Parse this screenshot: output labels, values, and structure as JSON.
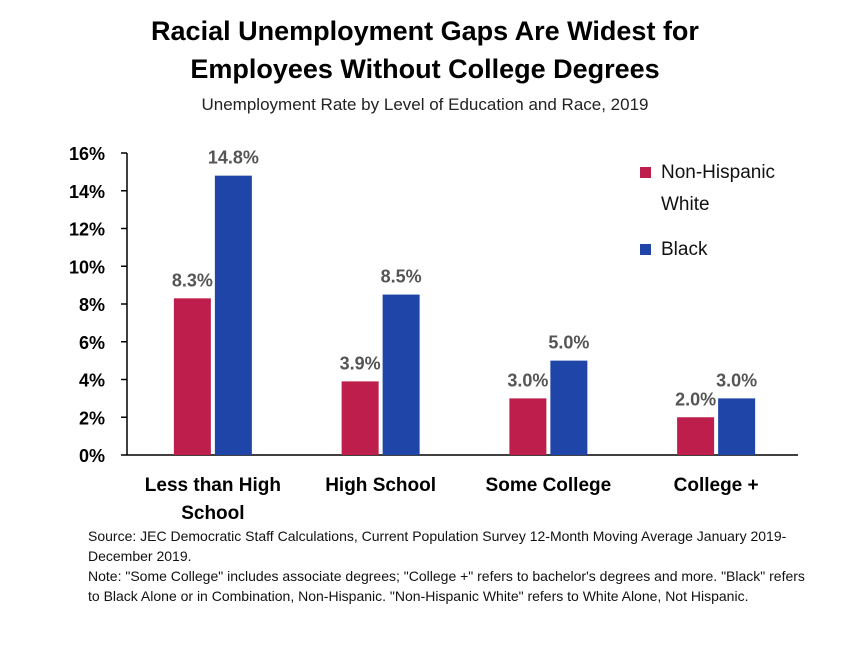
{
  "title_line1": "Racial Unemployment Gaps Are Widest for",
  "title_line2": "Employees Without College Degrees",
  "subtitle": "Unemployment Rate by Level of Education and Race, 2019",
  "source": "Source: JEC Democratic Staff Calculations, Current Population Survey 12-Month Moving Average January 2019-December 2019.",
  "note": "Note: \"Some College\" includes associate degrees; \"College +\" refers to bachelor's degrees and more. \"Black\" refers to Black Alone or in Combination, Non-Hispanic. \"Non-Hispanic White\" refers to White Alone, Not Hispanic.",
  "chart_data": {
    "type": "bar",
    "categories": [
      "Less than High School",
      "High School",
      "Some College",
      "College +"
    ],
    "series": [
      {
        "name": "Non-Hispanic White",
        "color": "#be1e4b",
        "values": [
          8.3,
          3.9,
          3.0,
          2.0
        ],
        "labels": [
          "8.3%",
          "3.9%",
          "3.0%",
          "2.0%"
        ]
      },
      {
        "name": "Black",
        "color": "#1f45a8",
        "values": [
          14.8,
          8.5,
          5.0,
          3.0
        ],
        "labels": [
          "14.8%",
          "8.5%",
          "5.0%",
          "3.0%"
        ]
      }
    ],
    "ylim": [
      0,
      16
    ],
    "yticks": [
      "0%",
      "2%",
      "4%",
      "6%",
      "8%",
      "10%",
      "12%",
      "14%",
      "16%"
    ],
    "xlabel": "",
    "ylabel": "",
    "legend_position": "top-right",
    "grid": false
  }
}
